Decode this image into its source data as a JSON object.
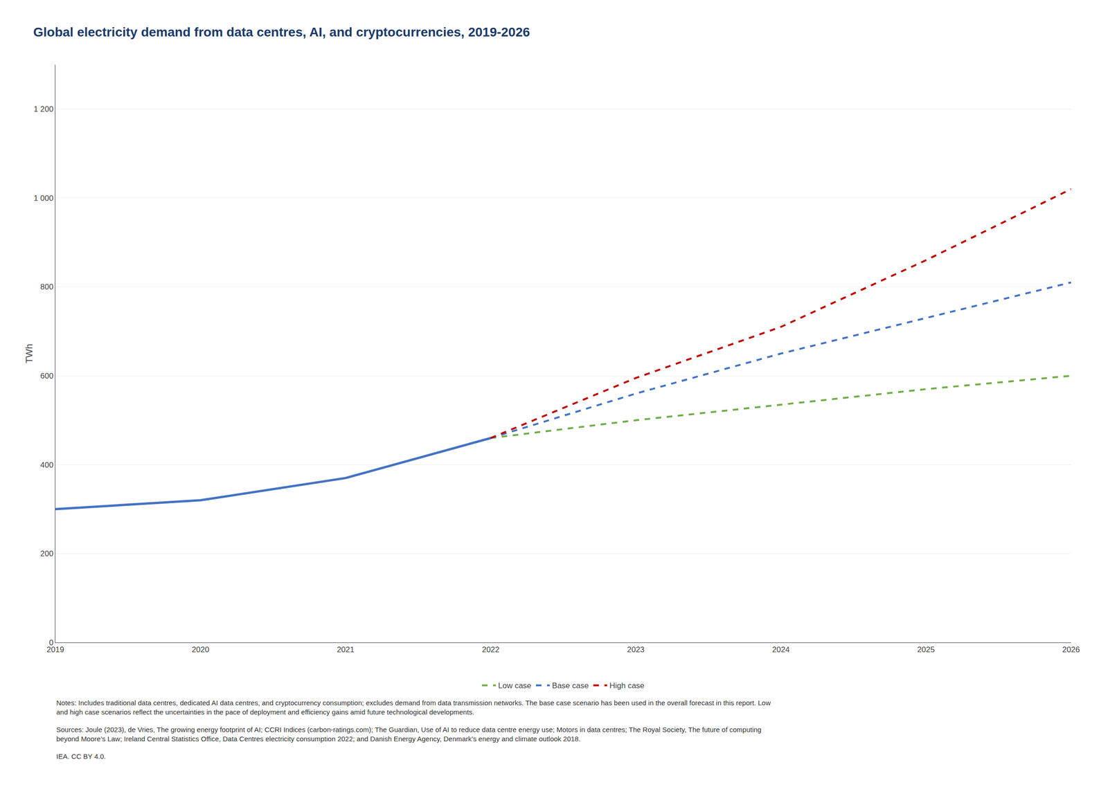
{
  "chart_data": {
    "type": "line",
    "title": "Global electricity demand from data centres, AI, and cryptocurrencies, 2019-2026",
    "ylabel": "TWh",
    "x": [
      2019,
      2020,
      2021,
      2022,
      2023,
      2024,
      2025,
      2026
    ],
    "series": [
      {
        "name": "Low case",
        "color": "#70ad47",
        "line_style": "dashed",
        "values": [
          null,
          null,
          null,
          460,
          500,
          535,
          570,
          600
        ]
      },
      {
        "name": "Base case",
        "color": "#4472c4",
        "line_style": "dashed",
        "values": [
          null,
          null,
          null,
          460,
          560,
          650,
          730,
          810
        ]
      },
      {
        "name": "Base case",
        "color": "#4472c4",
        "line_style": "solid",
        "values": [
          300,
          320,
          370,
          460,
          null,
          null,
          null,
          null
        ]
      },
      {
        "name": "High case",
        "color": "#c00000",
        "line_style": "dashed",
        "values": [
          null,
          null,
          null,
          460,
          595,
          710,
          860,
          1020
        ]
      }
    ],
    "xlim": [
      2019,
      2026
    ],
    "xticks": [
      2019,
      2020,
      2021,
      2022,
      2023,
      2024,
      2025,
      2026
    ],
    "ylim": [
      0,
      1300
    ],
    "yticks": [
      0,
      200,
      400,
      600,
      800,
      {
        "value": 1000,
        "label": "1 000"
      },
      {
        "value": 1200,
        "label": "1 200"
      }
    ],
    "grid": "y",
    "legend": "bottom",
    "annotations": [
      "Notes: Includes traditional data centres, dedicated AI data centres, and cryptocurrency consumption; excludes demand from data transmission networks. The base case scenario has been used in the overall forecast in this report. Low and high case scenarios reflect the uncertainties in the pace of deployment and efficiency gains amid future technological developments.",
      "Sources: Joule (2023), de Vries, The growing energy footprint of AI; CCRI Indices (carbon-ratings.com); The Guardian, Use of AI to reduce data centre energy use; Motors in data centres; The Royal Society, The future of computing beyond Moore’s Law; Ireland Central Statistics Office, Data Centres electricity consumption 2022; and Danish Energy Agency, Denmark’s energy and climate outlook 2018.",
      "IEA. CC BY 4.0."
    ]
  }
}
